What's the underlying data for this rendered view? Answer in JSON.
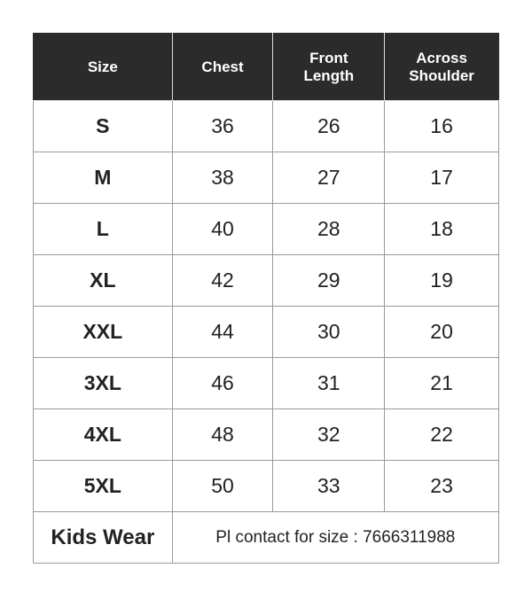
{
  "table": {
    "header": [
      "Size",
      "Chest",
      "Front Length",
      "Across Shoulder"
    ],
    "rows": [
      [
        "S",
        "36",
        "26",
        "16"
      ],
      [
        "M",
        "38",
        "27",
        "17"
      ],
      [
        "L",
        "40",
        "28",
        "18"
      ],
      [
        "XL",
        "42",
        "29",
        "19"
      ],
      [
        "XXL",
        "44",
        "30",
        "20"
      ],
      [
        "3XL",
        "46",
        "31",
        "21"
      ],
      [
        "4XL",
        "48",
        "32",
        "22"
      ],
      [
        "5XL",
        "50",
        "33",
        "23"
      ]
    ],
    "footer": [
      "Kids Wear",
      "Pl contact for size : 7666311988"
    ]
  }
}
